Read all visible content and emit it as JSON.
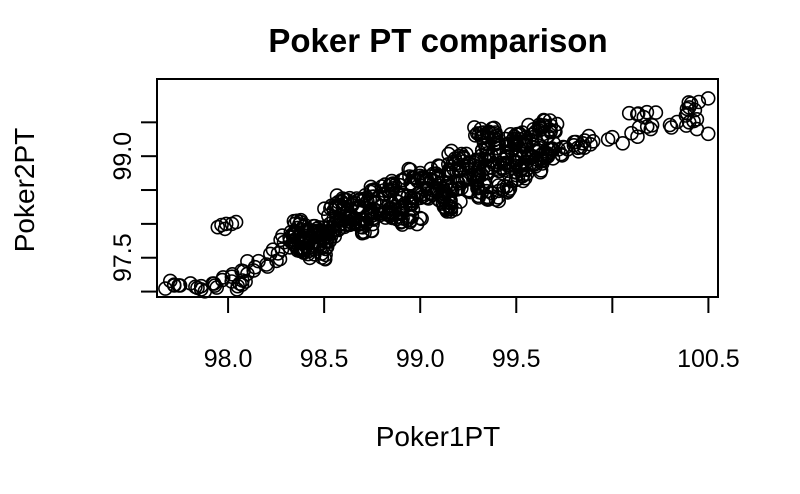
{
  "chart_data": {
    "type": "scatter",
    "title": "Poker PT comparison",
    "xlabel": "Poker1PT",
    "ylabel": "Poker2PT",
    "xlim": [
      97.63,
      100.55
    ],
    "ylim": [
      96.92,
      100.14
    ],
    "x_ticks": [
      {
        "value": 98.0,
        "label": "98.0"
      },
      {
        "value": 98.5,
        "label": "98.5"
      },
      {
        "value": 99.0,
        "label": "99.0"
      },
      {
        "value": 99.5,
        "label": "99.5"
      },
      {
        "value": 100.0,
        "label": ""
      },
      {
        "value": 100.5,
        "label": "100.5"
      }
    ],
    "y_ticks": [
      {
        "value": 97.0,
        "label": ""
      },
      {
        "value": 97.5,
        "label": "97.5"
      },
      {
        "value": 98.0,
        "label": ""
      },
      {
        "value": 98.5,
        "label": ""
      },
      {
        "value": 99.0,
        "label": "99.0"
      },
      {
        "value": 99.5,
        "label": ""
      }
    ],
    "grid": false,
    "points": [
      [
        97.72,
        97.09
      ],
      [
        97.75,
        97.09
      ],
      [
        97.83,
        97.07
      ],
      [
        97.86,
        97.08
      ],
      [
        97.92,
        97.12
      ],
      [
        97.97,
        97.17
      ],
      [
        98.02,
        97.22
      ],
      [
        98.08,
        97.3
      ],
      [
        98.14,
        97.36
      ],
      [
        98.2,
        97.4
      ],
      [
        98.27,
        97.48
      ],
      [
        98.05,
        97.08
      ],
      [
        98.06,
        97.12
      ],
      [
        97.99,
        98.0
      ],
      [
        98.02,
        98.0
      ],
      [
        98.35,
        97.7
      ],
      [
        98.4,
        97.76
      ],
      [
        98.45,
        97.83
      ],
      [
        98.52,
        97.88
      ],
      [
        98.58,
        97.93
      ],
      [
        98.63,
        98.0
      ],
      [
        98.7,
        98.08
      ],
      [
        98.78,
        98.15
      ],
      [
        98.85,
        98.22
      ],
      [
        98.92,
        98.3
      ],
      [
        98.98,
        98.37
      ],
      [
        99.05,
        98.45
      ],
      [
        99.12,
        98.52
      ],
      [
        99.2,
        98.6
      ],
      [
        99.28,
        98.68
      ],
      [
        99.35,
        98.75
      ],
      [
        99.42,
        98.83
      ],
      [
        99.5,
        98.9
      ],
      [
        99.58,
        98.98
      ],
      [
        99.65,
        99.04
      ],
      [
        99.72,
        99.1
      ],
      [
        99.8,
        99.16
      ],
      [
        99.9,
        99.22
      ],
      [
        100.0,
        99.28
      ],
      [
        100.1,
        99.34
      ],
      [
        100.2,
        99.4
      ],
      [
        100.3,
        99.46
      ],
      [
        100.4,
        99.5
      ],
      [
        100.44,
        99.4
      ],
      [
        98.5,
        97.95
      ],
      [
        98.6,
        98.05
      ],
      [
        98.55,
        98.2
      ],
      [
        98.65,
        98.3
      ],
      [
        98.75,
        98.4
      ],
      [
        98.85,
        98.5
      ],
      [
        98.95,
        98.6
      ],
      [
        99.05,
        98.7
      ],
      [
        99.15,
        98.8
      ],
      [
        99.25,
        98.9
      ],
      [
        99.35,
        99.0
      ],
      [
        99.45,
        99.05
      ],
      [
        99.55,
        99.15
      ],
      [
        99.33,
        99.35
      ],
      [
        99.35,
        99.28
      ],
      [
        99.68,
        99.45
      ],
      [
        99.62,
        99.38
      ],
      [
        99.55,
        99.28
      ],
      [
        100.13,
        99.62
      ],
      [
        100.18,
        99.65
      ],
      [
        100.4,
        99.72
      ],
      [
        100.45,
        99.8
      ],
      [
        100.43,
        99.68
      ],
      [
        98.45,
        97.55
      ],
      [
        98.48,
        97.7
      ],
      [
        98.7,
        97.95
      ],
      [
        98.9,
        98.15
      ],
      [
        99.1,
        98.35
      ],
      [
        99.3,
        98.55
      ],
      [
        99.5,
        98.72
      ],
      [
        99.6,
        98.85
      ],
      [
        98.32,
        97.8
      ],
      [
        98.4,
        97.98
      ],
      [
        98.62,
        98.35
      ],
      [
        98.8,
        98.55
      ],
      [
        99.0,
        98.75
      ],
      [
        99.2,
        99.0
      ],
      [
        99.4,
        99.2
      ],
      [
        99.5,
        99.25
      ],
      [
        98.28,
        97.62
      ],
      [
        98.38,
        97.62
      ],
      [
        98.95,
        98.05
      ],
      [
        99.15,
        98.25
      ],
      [
        99.35,
        98.4
      ],
      [
        99.45,
        98.55
      ]
    ]
  }
}
